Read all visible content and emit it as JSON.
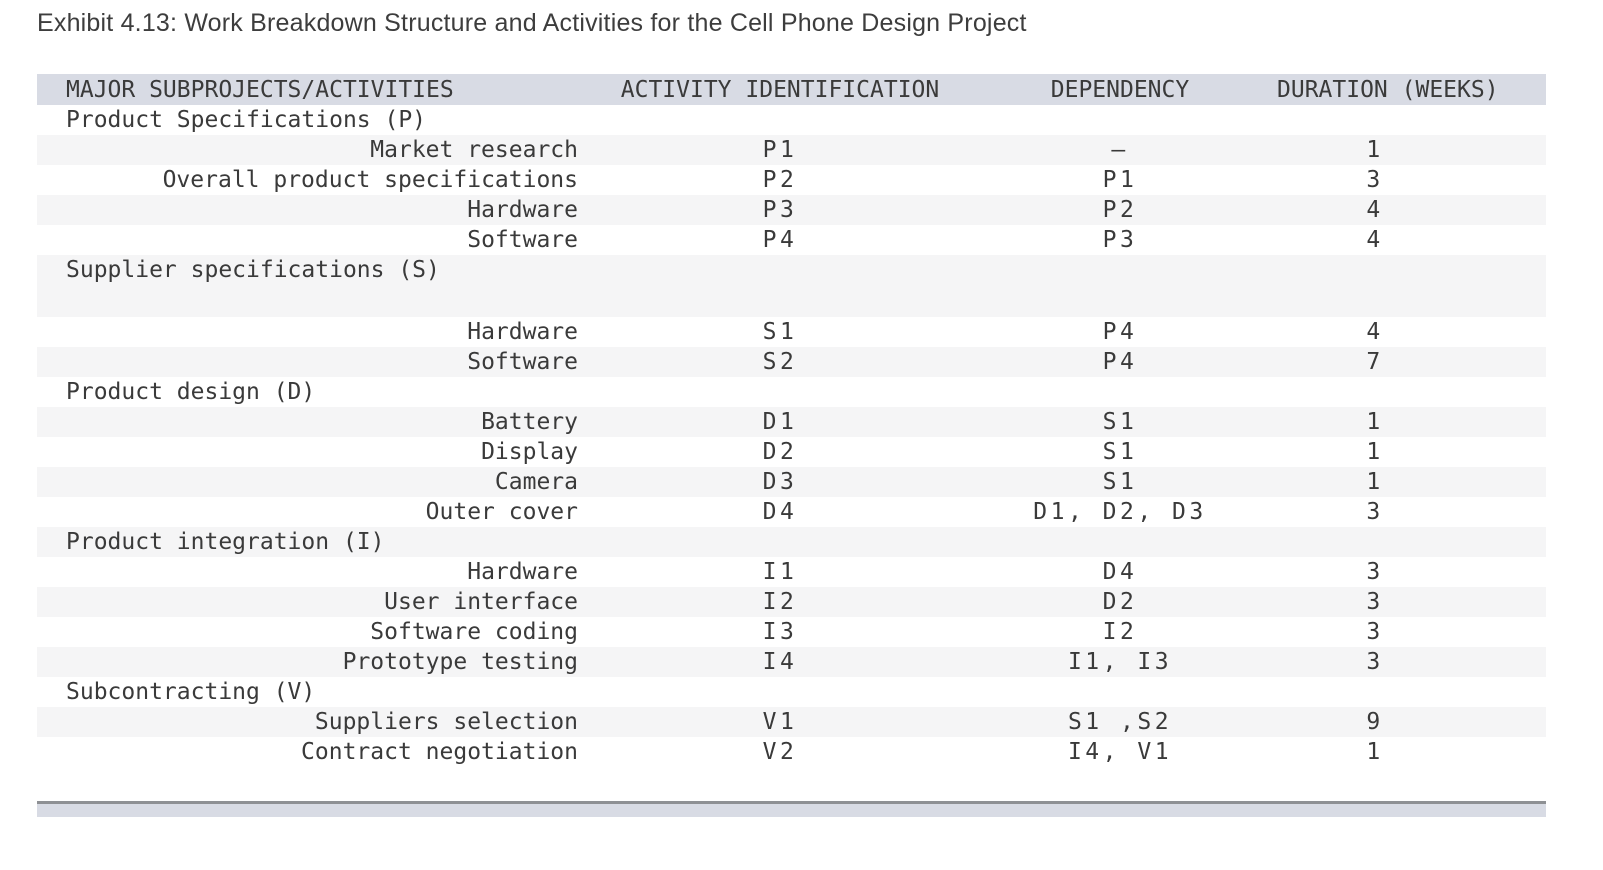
{
  "title": "Exhibit 4.13: Work Breakdown Structure and Activities for the Cell Phone Design Project",
  "colors": {
    "header_bg": "#d8dbe4",
    "stripe_bg": "#f5f5f6",
    "text": "#3a3a3a",
    "footer_border": "#8e9094"
  },
  "table": {
    "columns": [
      "MAJOR SUBPROJECTS/ACTIVITIES",
      "ACTIVITY IDENTIFICATION",
      "DEPENDENCY",
      "DURATION (WEEKS)"
    ],
    "rows": [
      {
        "type": "section",
        "activity": "Product Specifications (P)",
        "id": "",
        "dependency": "",
        "duration": ""
      },
      {
        "type": "activity",
        "activity": "Market research",
        "id": "P1",
        "dependency": "–",
        "duration": "1"
      },
      {
        "type": "activity",
        "activity": "Overall product specifications",
        "id": "P2",
        "dependency": "P1",
        "duration": "3"
      },
      {
        "type": "activity",
        "activity": "Hardware",
        "id": "P3",
        "dependency": "P2",
        "duration": "4"
      },
      {
        "type": "activity",
        "activity": "Software",
        "id": "P4",
        "dependency": "P3",
        "duration": "4"
      },
      {
        "type": "section",
        "activity": "Supplier specifications (S)",
        "id": "",
        "dependency": "",
        "duration": "",
        "tall": true
      },
      {
        "type": "activity",
        "activity": "Hardware",
        "id": "S1",
        "dependency": "P4",
        "duration": "4"
      },
      {
        "type": "activity",
        "activity": "Software",
        "id": "S2",
        "dependency": "P4",
        "duration": "7"
      },
      {
        "type": "section",
        "activity": "Product design (D)",
        "id": "",
        "dependency": "",
        "duration": ""
      },
      {
        "type": "activity",
        "activity": "Battery",
        "id": "D1",
        "dependency": "S1",
        "duration": "1"
      },
      {
        "type": "activity",
        "activity": "Display",
        "id": "D2",
        "dependency": "S1",
        "duration": "1"
      },
      {
        "type": "activity",
        "activity": "Camera",
        "id": "D3",
        "dependency": "S1",
        "duration": "1"
      },
      {
        "type": "activity",
        "activity": "Outer cover",
        "id": "D4",
        "dependency": "D1, D2, D3",
        "duration": "3"
      },
      {
        "type": "section",
        "activity": "Product integration (I)",
        "id": "",
        "dependency": "",
        "duration": ""
      },
      {
        "type": "activity",
        "activity": "Hardware",
        "id": "I1",
        "dependency": "D4",
        "duration": "3"
      },
      {
        "type": "activity",
        "activity": "User interface",
        "id": "I2",
        "dependency": "D2",
        "duration": "3"
      },
      {
        "type": "activity",
        "activity": "Software coding",
        "id": "I3",
        "dependency": "I2",
        "duration": "3"
      },
      {
        "type": "activity",
        "activity": "Prototype testing",
        "id": "I4",
        "dependency": "I1, I3",
        "duration": "3"
      },
      {
        "type": "section",
        "activity": "Subcontracting (V)",
        "id": "",
        "dependency": "",
        "duration": ""
      },
      {
        "type": "activity",
        "activity": "Suppliers selection",
        "id": "V1",
        "dependency": "S1 ,S2",
        "duration": "9"
      },
      {
        "type": "activity",
        "activity": "Contract negotiation",
        "id": "V2",
        "dependency": "I4, V1",
        "duration": "1"
      }
    ]
  }
}
